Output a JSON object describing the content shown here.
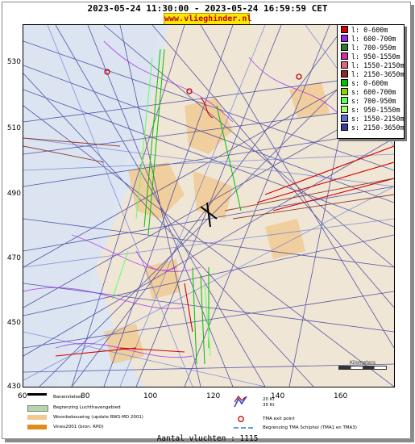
{
  "title": "2023-05-24 11:30:00 - 2023-05-24 16:59:59 CET",
  "site": "www.vlieghinder.nl",
  "y_axis": [
    "530",
    "510",
    "490",
    "470",
    "450",
    "430"
  ],
  "x_axis": [
    "60",
    "80",
    "100",
    "120",
    "140",
    "160"
  ],
  "legend": [
    {
      "label": "l: 0-600m",
      "color": "#d40000"
    },
    {
      "label": "l: 600-700m",
      "color": "#a020f0"
    },
    {
      "label": "l: 700-950m",
      "color": "#2e7d2e"
    },
    {
      "label": "l: 950-1550m",
      "color": "#cc3399"
    },
    {
      "label": "l: 1550-2150m",
      "color": "#d86a7a"
    },
    {
      "label": "l: 2150-3650m",
      "color": "#8b2c1e"
    },
    {
      "label": "s: 0-600m",
      "color": "#00c000"
    },
    {
      "label": "s: 600-700m",
      "color": "#8ad400"
    },
    {
      "label": "s: 700-950m",
      "color": "#60ff60"
    },
    {
      "label": "s: 950-1550m",
      "color": "#a8ff6a"
    },
    {
      "label": "s: 1550-2150m",
      "color": "#5a6fd6"
    },
    {
      "label": "s: 2150-3650m",
      "color": "#3c3c9c"
    }
  ],
  "bottom_legend": {
    "runway": "Banenstelsel",
    "airport": "Begrenzing Luchthavengebied",
    "housing": "Woonbebouwing (update RWS-MD 2001)",
    "vinex": "Vinex2001 (bron: RPD)",
    "wind_a": "20 Kt",
    "wind_b": "35 Kt",
    "tma_exit": "TMA exit point",
    "tma_border": "Begrenzing TMA Schiphol  (TMA1 en TMA3)"
  },
  "scale_label": "Kilometers",
  "flight_count": "Aantal vluchten : 1115"
}
